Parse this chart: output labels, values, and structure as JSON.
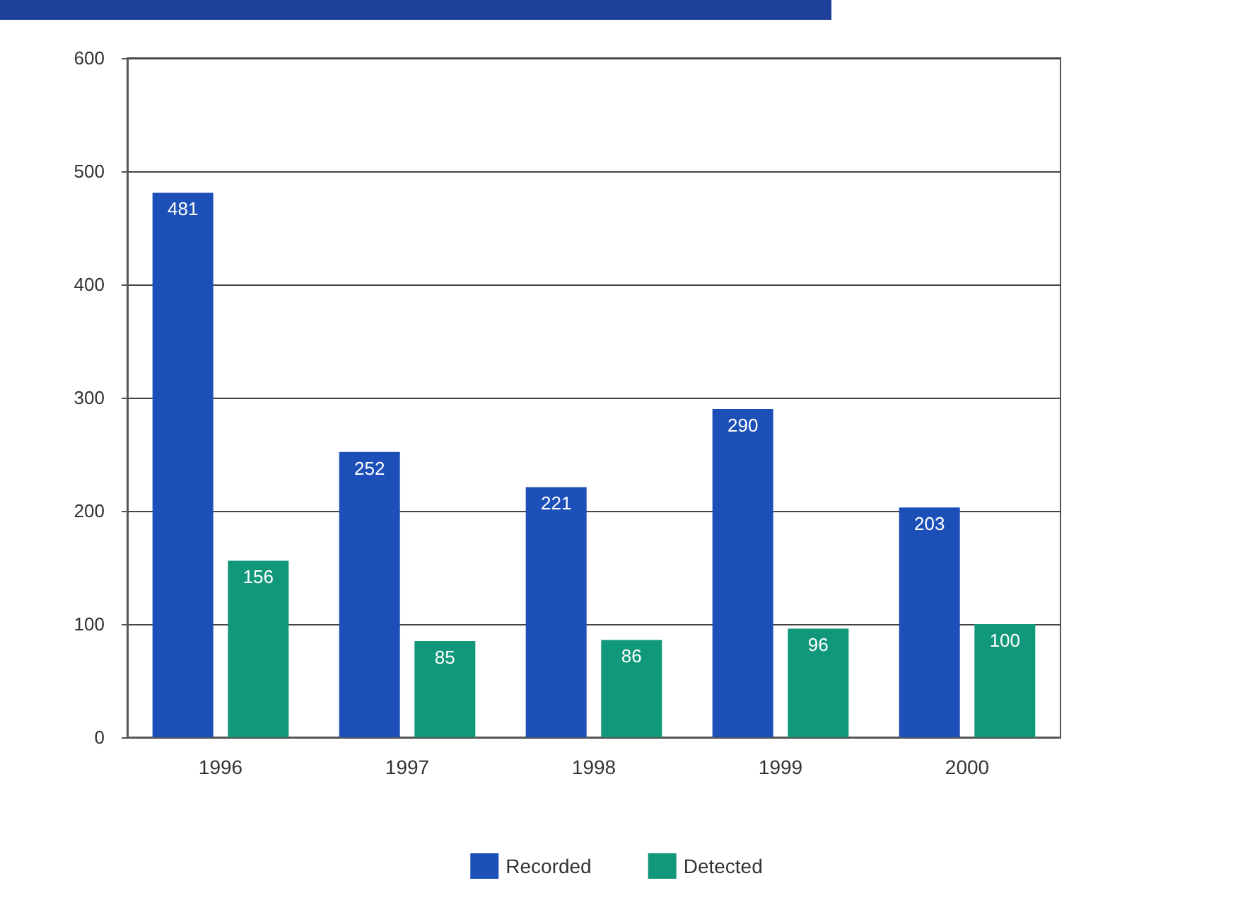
{
  "chart_data": {
    "type": "bar",
    "categories": [
      "1996",
      "1997",
      "1998",
      "1999",
      "2000"
    ],
    "series": [
      {
        "name": "Recorded",
        "color": "#1d4fb8",
        "values": [
          481,
          252,
          221,
          290,
          203
        ]
      },
      {
        "name": "Detected",
        "color": "#11987a",
        "values": [
          156,
          85,
          86,
          96,
          100
        ]
      }
    ],
    "ylim": [
      0,
      600
    ],
    "yticks": [
      0,
      100,
      200,
      300,
      400,
      500,
      600
    ],
    "grid": "y",
    "legend": "bottom",
    "data_labels": true
  }
}
